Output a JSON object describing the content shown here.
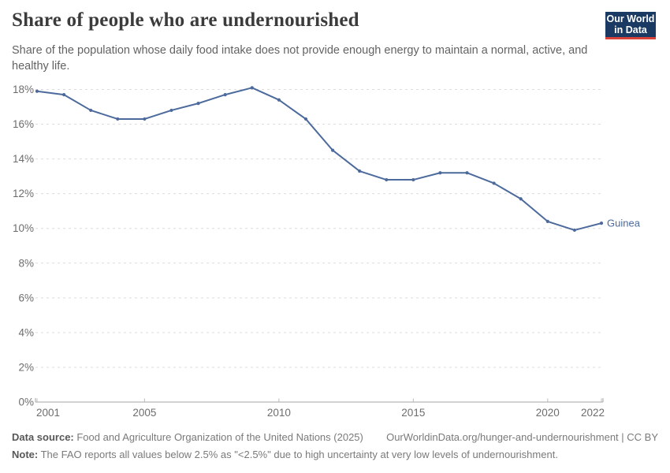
{
  "header": {
    "title": "Share of people who are undernourished",
    "subtitle": "Share of the population whose daily food intake does not provide enough energy to maintain a normal, active, and healthy life.",
    "logo": {
      "line1": "Our World",
      "line2": "in Data",
      "bg_color": "#1a3a63",
      "accent_color": "#d9423a"
    }
  },
  "chart_data": {
    "type": "line",
    "title": "Share of people who are undernourished",
    "x": [
      2001,
      2002,
      2003,
      2004,
      2005,
      2006,
      2007,
      2008,
      2009,
      2010,
      2011,
      2012,
      2013,
      2014,
      2015,
      2016,
      2017,
      2018,
      2019,
      2020,
      2021,
      2022
    ],
    "series": [
      {
        "name": "Guinea",
        "color": "#4c6a9c",
        "values": [
          17.9,
          17.7,
          16.8,
          16.3,
          16.3,
          16.8,
          17.2,
          17.7,
          18.1,
          17.4,
          16.3,
          14.5,
          13.3,
          12.8,
          12.8,
          13.2,
          13.2,
          12.6,
          11.7,
          10.4,
          9.9,
          10.3
        ]
      }
    ],
    "xlim": [
      2001,
      2022
    ],
    "ylim": [
      0,
      18
    ],
    "x_ticks": [
      2001,
      2005,
      2010,
      2015,
      2020,
      2022
    ],
    "y_ticks": [
      0,
      2,
      4,
      6,
      8,
      10,
      12,
      14,
      16,
      18
    ],
    "y_tick_suffix": "%",
    "grid": "horizontal-dashed",
    "legend_position": "end-of-line-label",
    "grid_color": "#dcdcdc",
    "axis_color": "#a5a5a5",
    "tick_label_color": "#6d6d6d"
  },
  "footer": {
    "datasource_label": "Data source:",
    "datasource_text": " Food and Agriculture Organization of the United Nations (2025)",
    "credit": "OurWorldinData.org/hunger-and-undernourishment | CC BY",
    "note_label": "Note:",
    "note_text": " The FAO reports all values below 2.5% as \"<2.5%\" due to high uncertainty at very low levels of undernourishment."
  }
}
